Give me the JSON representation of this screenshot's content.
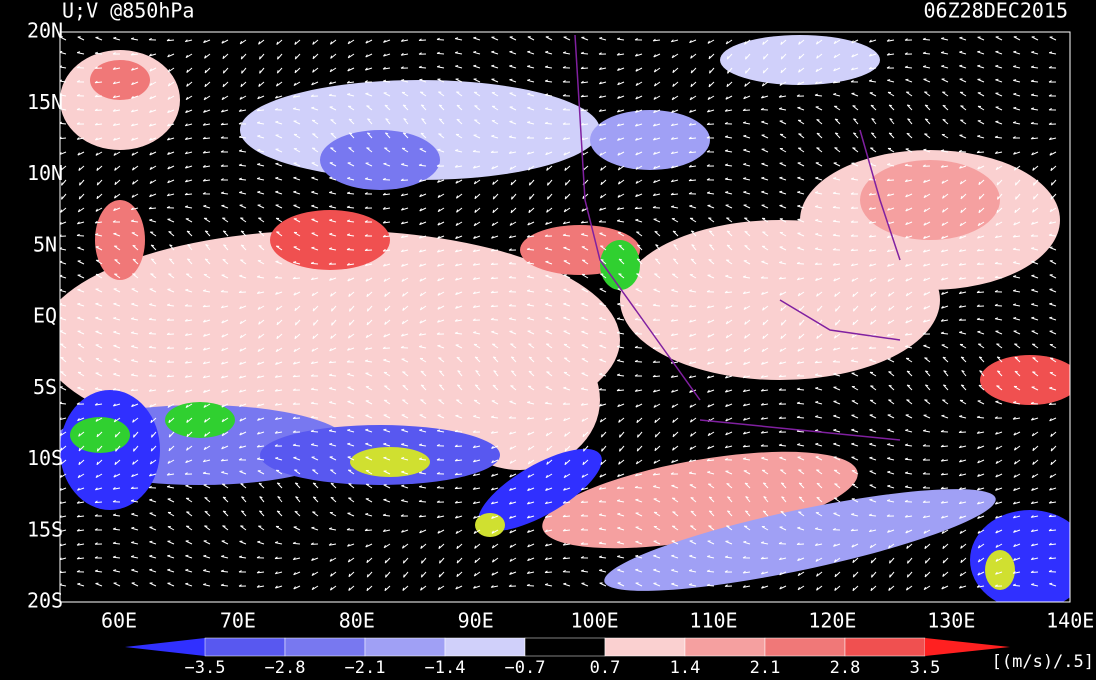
{
  "header": {
    "title": "U;V @850hPa",
    "time": "06Z28DEC2015"
  },
  "lat_labels": [
    "20N",
    "15N",
    "10N",
    "5N",
    "EQ",
    "5S",
    "10S",
    "15S",
    "20S"
  ],
  "lon_labels": [
    "60E",
    "70E",
    "80E",
    "90E",
    "100E",
    "110E",
    "120E",
    "130E",
    "140E"
  ],
  "colorbar": {
    "labels": [
      "−3.5",
      "−2.8",
      "−2.1",
      "−1.4",
      "−0.7",
      "0.7",
      "1.4",
      "2.1",
      "2.8",
      "3.5"
    ],
    "unit": "[(m/s)/.5]"
  }
}
